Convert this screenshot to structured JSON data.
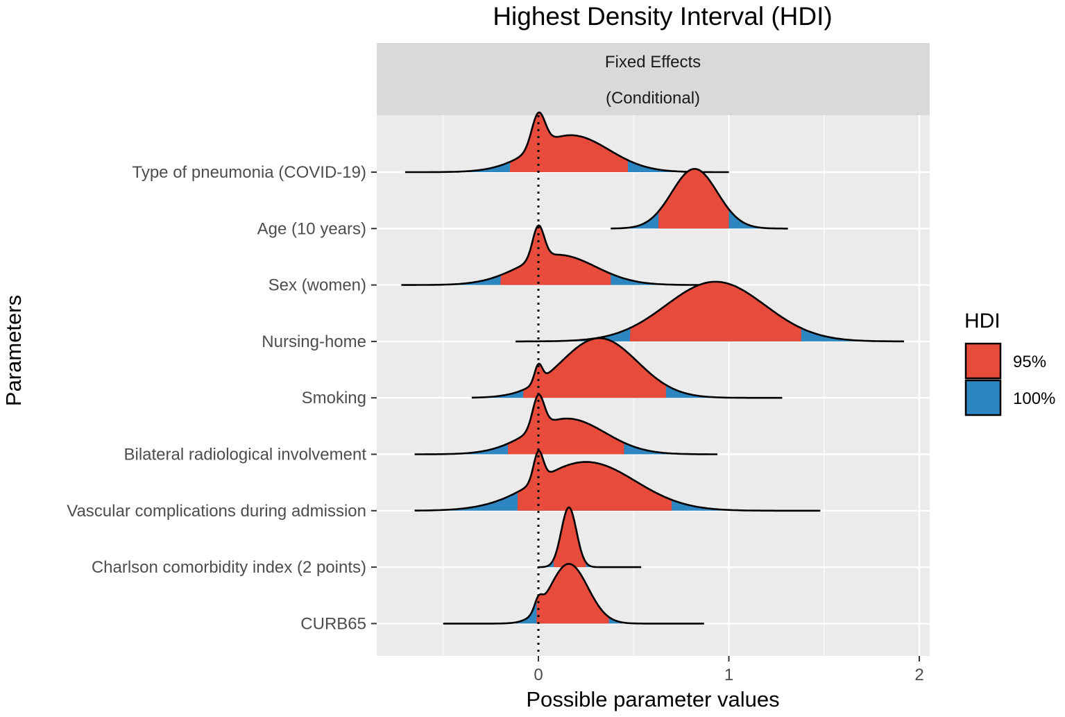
{
  "chart_data": {
    "type": "ridgeline",
    "title": "Highest Density Interval (HDI)",
    "facet_strip": [
      "Fixed Effects",
      "(Conditional)"
    ],
    "xlabel": "Possible parameter values",
    "ylabel": "Parameters",
    "xlim": [
      -0.85,
      2.05
    ],
    "x_ticks": [
      0,
      1,
      2
    ],
    "x_tick_labels": [
      "0",
      "1",
      "2"
    ],
    "reference_line_x": 0,
    "legend": {
      "title": "HDI",
      "entries": [
        {
          "label": "95%",
          "color": "#E64B3C"
        },
        {
          "label": "100%",
          "color": "#2E86C1"
        }
      ]
    },
    "parameters": [
      {
        "name": "Type of pneumonia (COVID-19)",
        "min": -0.7,
        "max": 1.0,
        "hdi95": [
          -0.15,
          0.47
        ],
        "components": [
          {
            "mu": 0.0,
            "sd": 0.035,
            "w": 0.55
          },
          {
            "mu": 0.17,
            "sd": 0.2,
            "w": 0.6
          }
        ]
      },
      {
        "name": "Age (10 years)",
        "min": 0.38,
        "max": 1.31,
        "hdi95": [
          0.63,
          1.0
        ],
        "components": [
          {
            "mu": 0.82,
            "sd": 0.12,
            "w": 1.0
          }
        ]
      },
      {
        "name": "Sex (women)",
        "min": -0.72,
        "max": 0.87,
        "hdi95": [
          -0.2,
          0.38
        ],
        "components": [
          {
            "mu": 0.0,
            "sd": 0.03,
            "w": 0.6
          },
          {
            "mu": 0.1,
            "sd": 0.2,
            "w": 0.55
          }
        ]
      },
      {
        "name": "Nursing-home",
        "min": -0.12,
        "max": 1.92,
        "hdi95": [
          0.48,
          1.38
        ],
        "components": [
          {
            "mu": 0.93,
            "sd": 0.26,
            "w": 1.0
          }
        ]
      },
      {
        "name": "Smoking",
        "min": -0.35,
        "max": 1.28,
        "hdi95": [
          -0.08,
          0.67
        ],
        "components": [
          {
            "mu": 0.0,
            "sd": 0.02,
            "w": 0.22
          },
          {
            "mu": 0.32,
            "sd": 0.2,
            "w": 0.75
          }
        ]
      },
      {
        "name": "Bilateral radiological involvement",
        "min": -0.65,
        "max": 0.94,
        "hdi95": [
          -0.16,
          0.45
        ],
        "components": [
          {
            "mu": 0.0,
            "sd": 0.03,
            "w": 0.55
          },
          {
            "mu": 0.15,
            "sd": 0.2,
            "w": 0.6
          }
        ]
      },
      {
        "name": "Vascular complications during admission",
        "min": -0.65,
        "max": 1.48,
        "hdi95": [
          -0.11,
          0.7
        ],
        "components": [
          {
            "mu": 0.0,
            "sd": 0.025,
            "w": 0.45
          },
          {
            "mu": 0.25,
            "sd": 0.26,
            "w": 0.75
          }
        ]
      },
      {
        "name": "Charlson comorbidity index (2 points)",
        "min": 0.0,
        "max": 0.54,
        "hdi95": [
          0.08,
          0.25
        ],
        "components": [
          {
            "mu": 0.16,
            "sd": 0.04,
            "w": 1.0
          }
        ]
      },
      {
        "name": "CURB65",
        "min": -0.5,
        "max": 0.87,
        "hdi95": [
          -0.01,
          0.37
        ],
        "components": [
          {
            "mu": 0.0,
            "sd": 0.02,
            "w": 0.17
          },
          {
            "mu": 0.16,
            "sd": 0.1,
            "w": 0.9
          }
        ]
      }
    ]
  }
}
